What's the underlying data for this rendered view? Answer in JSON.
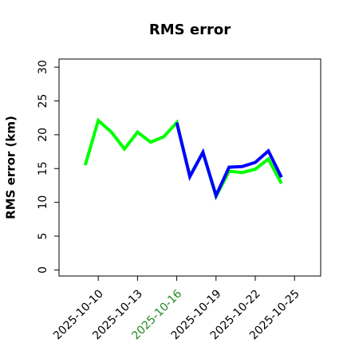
{
  "chart_data": {
    "type": "line",
    "title": "RMS error",
    "ylabel": "RMS error (km)",
    "x": [
      "2025-10-09",
      "2025-10-10",
      "2025-10-11",
      "2025-10-12",
      "2025-10-13",
      "2025-10-14",
      "2025-10-15",
      "2025-10-16",
      "2025-10-17",
      "2025-10-18",
      "2025-10-19",
      "2025-10-20",
      "2025-10-21",
      "2025-10-22",
      "2025-10-23",
      "2025-10-24"
    ],
    "series": [
      {
        "name": "green",
        "color": "#00ff00",
        "values": [
          15.5,
          22.1,
          20.4,
          17.9,
          20.4,
          18.9,
          19.7,
          21.8,
          13.9,
          17.4,
          10.9,
          14.6,
          14.4,
          14.9,
          16.4,
          12.8
        ]
      },
      {
        "name": "blue",
        "color": "#0000ff",
        "values": [
          null,
          null,
          null,
          null,
          null,
          null,
          null,
          21.8,
          13.8,
          17.4,
          11.0,
          15.2,
          15.3,
          15.9,
          17.6,
          13.7
        ]
      }
    ],
    "xlim": [
      "2025-10-07",
      "2025-10-27"
    ],
    "xticks": [
      "2025-10-10",
      "2025-10-13",
      "2025-10-16",
      "2025-10-19",
      "2025-10-22",
      "2025-10-25"
    ],
    "xtick_colors": [
      "#000000",
      "#000000",
      "#228b22",
      "#000000",
      "#000000",
      "#000000"
    ],
    "ylim": [
      -0.9,
      31.2
    ],
    "yticks": [
      0,
      5,
      10,
      15,
      20,
      25,
      30
    ]
  }
}
